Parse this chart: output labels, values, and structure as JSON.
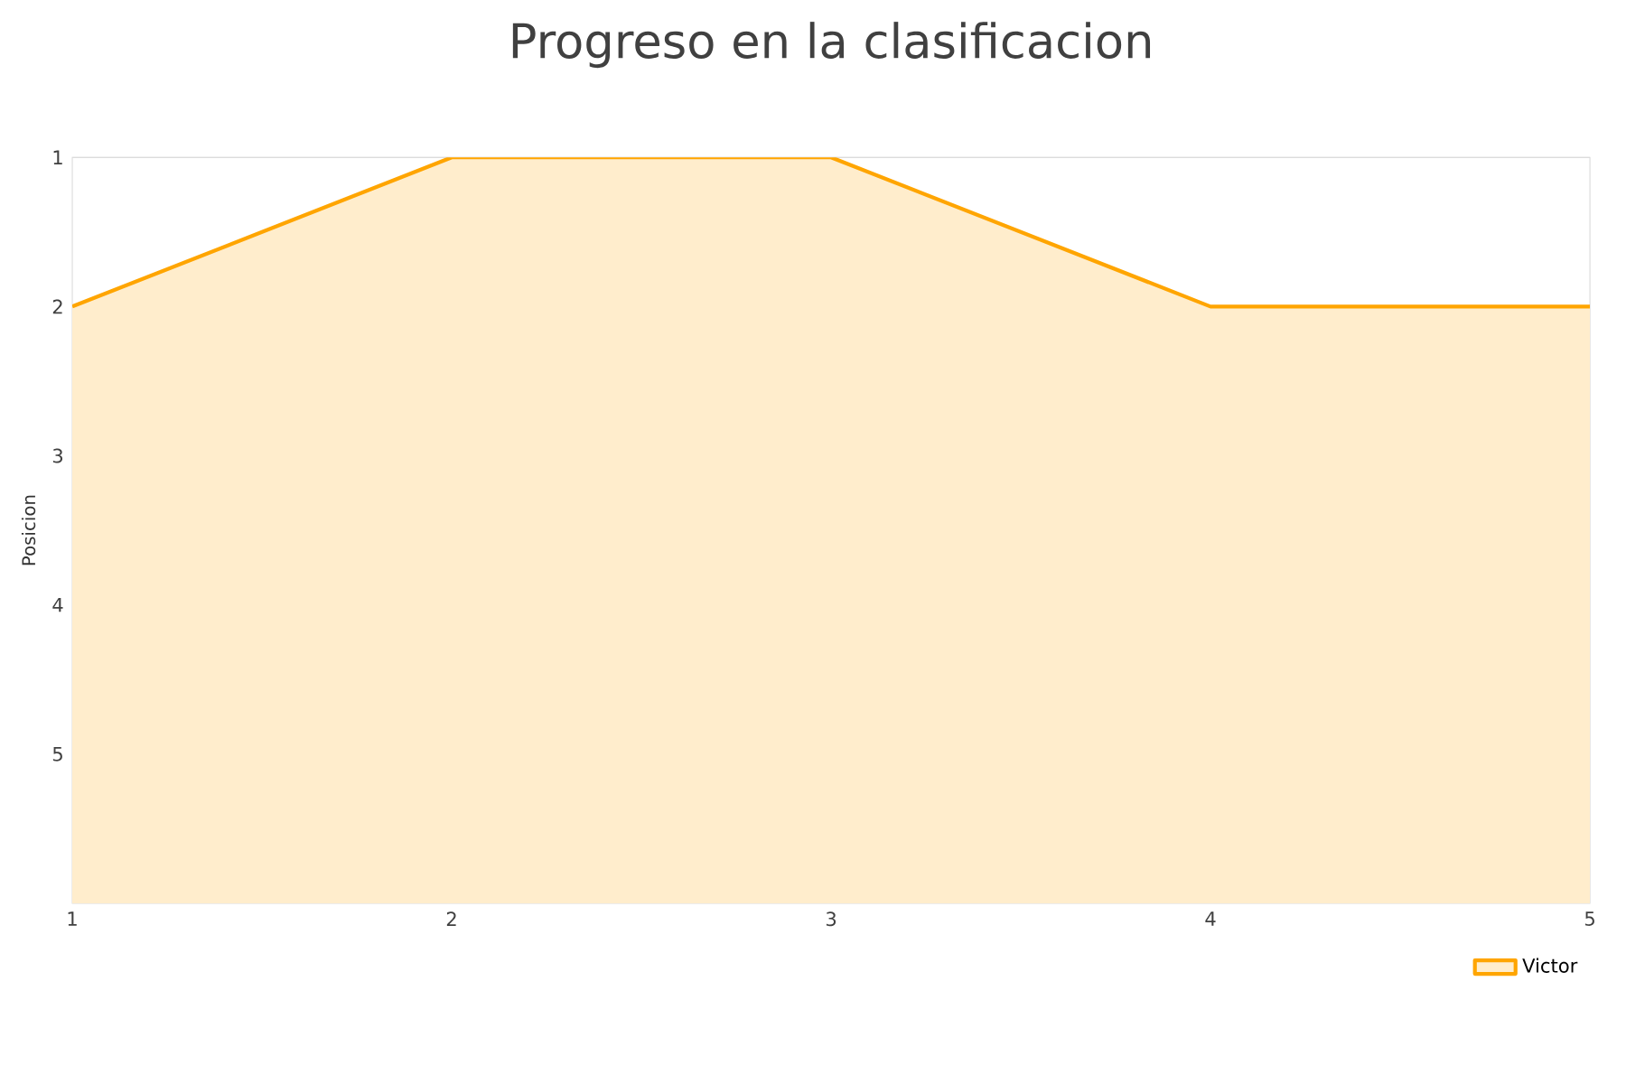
{
  "chart_data": {
    "type": "area",
    "title": "Progreso en la clasificacion",
    "ylabel": "Posicion",
    "x": [
      1,
      2,
      3,
      4,
      5
    ],
    "series": [
      {
        "name": "Victor",
        "color": "#ffa500",
        "values": [
          2,
          1,
          1,
          2,
          2
        ]
      }
    ],
    "xlim": [
      1,
      5
    ],
    "xticks": [
      1,
      2,
      3,
      4,
      5
    ],
    "ylim": [
      6,
      1
    ],
    "yticks": [
      1,
      2,
      3,
      4,
      5
    ],
    "grid": "y",
    "legend": "bottom right"
  }
}
